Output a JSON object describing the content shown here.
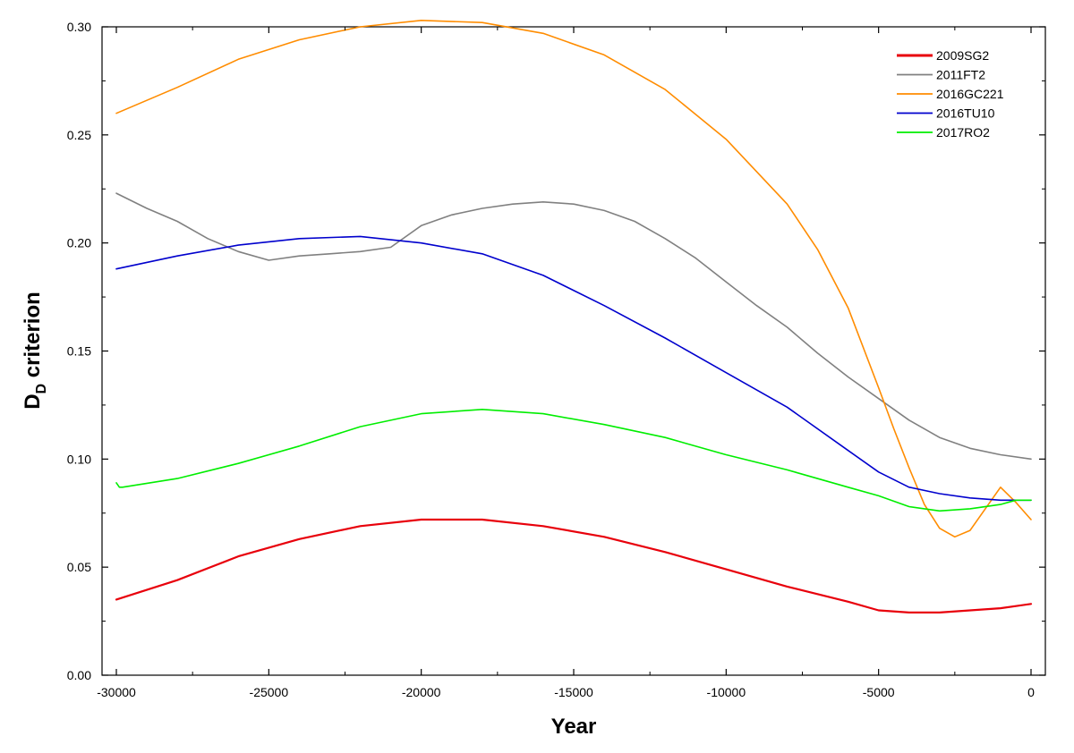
{
  "chart_data": {
    "type": "line",
    "xlabel": "Year",
    "ylabel": "D",
    "ylabel_subscript": "D",
    "ylabel_suffix": " criterion",
    "xlim": [
      -30000,
      0
    ],
    "ylim": [
      0.0,
      0.3
    ],
    "x_ticks": [
      -30000,
      -25000,
      -20000,
      -15000,
      -10000,
      -5000,
      0
    ],
    "x_tick_labels": [
      "-30000",
      "-25000",
      "-20000",
      "-15000",
      "-10000",
      "-5000",
      "0"
    ],
    "y_ticks": [
      0.0,
      0.05,
      0.1,
      0.15,
      0.2,
      0.25,
      0.3
    ],
    "y_tick_labels": [
      "0.00",
      "0.05",
      "0.10",
      "0.15",
      "0.20",
      "0.25",
      "0.30"
    ],
    "grid": false,
    "legend_position": "top-right",
    "series": [
      {
        "name": "2009SG2",
        "color": "#e8000b",
        "x": [
          -30000,
          -28000,
          -26000,
          -24000,
          -22000,
          -20000,
          -18000,
          -16000,
          -14000,
          -12000,
          -10000,
          -8000,
          -6000,
          -5000,
          -4000,
          -3000,
          -2000,
          -1000,
          0
        ],
        "y": [
          0.035,
          0.044,
          0.055,
          0.063,
          0.069,
          0.072,
          0.072,
          0.069,
          0.064,
          0.057,
          0.049,
          0.041,
          0.034,
          0.03,
          0.029,
          0.029,
          0.03,
          0.031,
          0.033
        ]
      },
      {
        "name": "2011FT2",
        "color": "#808080",
        "x": [
          -30000,
          -29000,
          -28000,
          -27000,
          -26000,
          -25000,
          -24000,
          -23000,
          -22000,
          -21000,
          -20000,
          -19000,
          -18000,
          -17000,
          -16000,
          -15000,
          -14000,
          -13000,
          -12000,
          -11000,
          -10000,
          -9000,
          -8000,
          -7000,
          -6000,
          -5000,
          -4000,
          -3000,
          -2000,
          -1000,
          0
        ],
        "y": [
          0.223,
          0.216,
          0.21,
          0.202,
          0.196,
          0.192,
          0.194,
          0.195,
          0.196,
          0.198,
          0.208,
          0.213,
          0.216,
          0.218,
          0.219,
          0.218,
          0.215,
          0.21,
          0.202,
          0.193,
          0.182,
          0.171,
          0.161,
          0.149,
          0.138,
          0.128,
          0.118,
          0.11,
          0.105,
          0.102,
          0.1
        ]
      },
      {
        "name": "2016GC221",
        "color": "#ff8c00",
        "x": [
          -30000,
          -28000,
          -26000,
          -24000,
          -22000,
          -20000,
          -18000,
          -16000,
          -14000,
          -12000,
          -10000,
          -8000,
          -7000,
          -6000,
          -5000,
          -4500,
          -4000,
          -3500,
          -3000,
          -2500,
          -2000,
          -1500,
          -1000,
          -500,
          0
        ],
        "y": [
          0.26,
          0.272,
          0.285,
          0.294,
          0.3,
          0.303,
          0.302,
          0.297,
          0.287,
          0.271,
          0.248,
          0.218,
          0.197,
          0.17,
          0.133,
          0.114,
          0.096,
          0.079,
          0.068,
          0.064,
          0.067,
          0.077,
          0.087,
          0.08,
          0.072
        ]
      },
      {
        "name": "2016TU10",
        "color": "#0000cd",
        "x": [
          -30000,
          -28000,
          -26000,
          -24000,
          -22000,
          -20000,
          -18000,
          -16000,
          -14000,
          -12000,
          -10000,
          -8000,
          -6000,
          -5000,
          -4000,
          -3000,
          -2000,
          -1000,
          0
        ],
        "y": [
          0.188,
          0.194,
          0.199,
          0.202,
          0.203,
          0.2,
          0.195,
          0.185,
          0.171,
          0.156,
          0.14,
          0.124,
          0.104,
          0.094,
          0.087,
          0.084,
          0.082,
          0.081,
          0.081
        ]
      },
      {
        "name": "2017RO2",
        "color": "#00ee00",
        "x": [
          -30000,
          -29900,
          -29800,
          -28000,
          -26000,
          -24000,
          -22000,
          -20000,
          -18000,
          -16000,
          -14000,
          -12000,
          -10000,
          -8000,
          -6000,
          -5000,
          -4000,
          -3000,
          -2000,
          -1000,
          -500,
          0
        ],
        "y": [
          0.089,
          0.087,
          0.087,
          0.091,
          0.098,
          0.106,
          0.115,
          0.121,
          0.123,
          0.121,
          0.116,
          0.11,
          0.102,
          0.095,
          0.087,
          0.083,
          0.078,
          0.076,
          0.077,
          0.079,
          0.081,
          0.081
        ]
      }
    ]
  }
}
